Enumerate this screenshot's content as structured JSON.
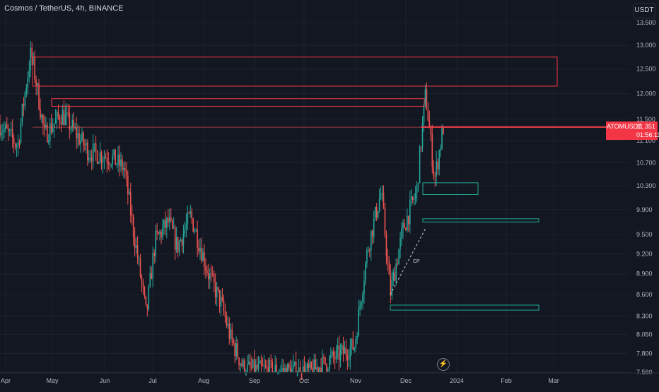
{
  "header": {
    "symbol_title": "Cosmos / TetherUS, 4h, BINANCE"
  },
  "currency_label": "USDT",
  "price_tag": {
    "ticker": "ATOMUSDT",
    "price": "11.351",
    "countdown": "01:56:11"
  },
  "annotation": {
    "label": "CP"
  },
  "icons": {
    "bolt": "lightning-bolt-icon"
  },
  "colors": {
    "up": "#26a69a",
    "down": "#ef5350",
    "zone_supply": "#f23645",
    "zone_demand": "#22ab94",
    "background": "#131722"
  },
  "chart_data": {
    "type": "candlestick",
    "x_axis_labels": [
      "Apr",
      "May",
      "Jun",
      "Jul",
      "Aug",
      "Sep",
      "Oct",
      "Nov",
      "Dec",
      "2024",
      "Feb",
      "Mar"
    ],
    "y_axis_labels": [
      "13.500",
      "13.000",
      "12.500",
      "12.000",
      "11.500",
      "11.100",
      "10.700",
      "10.300",
      "9.900",
      "9.500",
      "9.200",
      "8.900",
      "8.600",
      "8.300",
      "8.050",
      "7.800",
      "7.560"
    ],
    "y_scale": "log",
    "ylim": [
      7.56,
      13.5
    ],
    "last_price": 11.351,
    "price_path": [
      {
        "t": 0,
        "p": 11.4
      },
      {
        "t": 0.04,
        "p": 11.0
      },
      {
        "t": 0.07,
        "p": 12.85
      },
      {
        "t": 0.1,
        "p": 11.2
      },
      {
        "t": 0.14,
        "p": 11.6
      },
      {
        "t": 0.2,
        "p": 10.9
      },
      {
        "t": 0.25,
        "p": 10.8
      },
      {
        "t": 0.28,
        "p": 10.6
      },
      {
        "t": 0.3,
        "p": 9.6
      },
      {
        "t": 0.33,
        "p": 8.3
      },
      {
        "t": 0.35,
        "p": 9.4
      },
      {
        "t": 0.38,
        "p": 9.7
      },
      {
        "t": 0.4,
        "p": 9.3
      },
      {
        "t": 0.43,
        "p": 9.8
      },
      {
        "t": 0.47,
        "p": 8.9
      },
      {
        "t": 0.5,
        "p": 8.45
      },
      {
        "t": 0.52,
        "p": 8.0
      },
      {
        "t": 0.55,
        "p": 7.6
      },
      {
        "t": 0.7,
        "p": 7.56
      },
      {
        "t": 0.8,
        "p": 7.9
      },
      {
        "t": 0.83,
        "p": 9.3
      },
      {
        "t": 0.86,
        "p": 10.2
      },
      {
        "t": 0.88,
        "p": 8.6
      },
      {
        "t": 0.91,
        "p": 9.6
      },
      {
        "t": 0.94,
        "p": 10.2
      },
      {
        "t": 0.96,
        "p": 12.0
      },
      {
        "t": 0.98,
        "p": 10.4
      },
      {
        "t": 1.0,
        "p": 11.35
      }
    ],
    "zones": [
      {
        "kind": "supply",
        "price_from": 13.5,
        "price_to": 13.7
      },
      {
        "kind": "supply",
        "price_from": 12.15,
        "price_to": 12.75
      },
      {
        "kind": "supply",
        "price_from": 11.75,
        "price_to": 11.9
      },
      {
        "kind": "supply",
        "price_from": 11.35,
        "price_to": 11.36
      },
      {
        "kind": "demand",
        "price_from": 10.15,
        "price_to": 10.35
      },
      {
        "kind": "demand",
        "price_from": 9.7,
        "price_to": 9.75
      },
      {
        "kind": "demand",
        "price_from": 8.38,
        "price_to": 8.45
      }
    ],
    "trendline": {
      "label": "CP",
      "from_price": 8.6,
      "to_price": 9.6
    }
  }
}
